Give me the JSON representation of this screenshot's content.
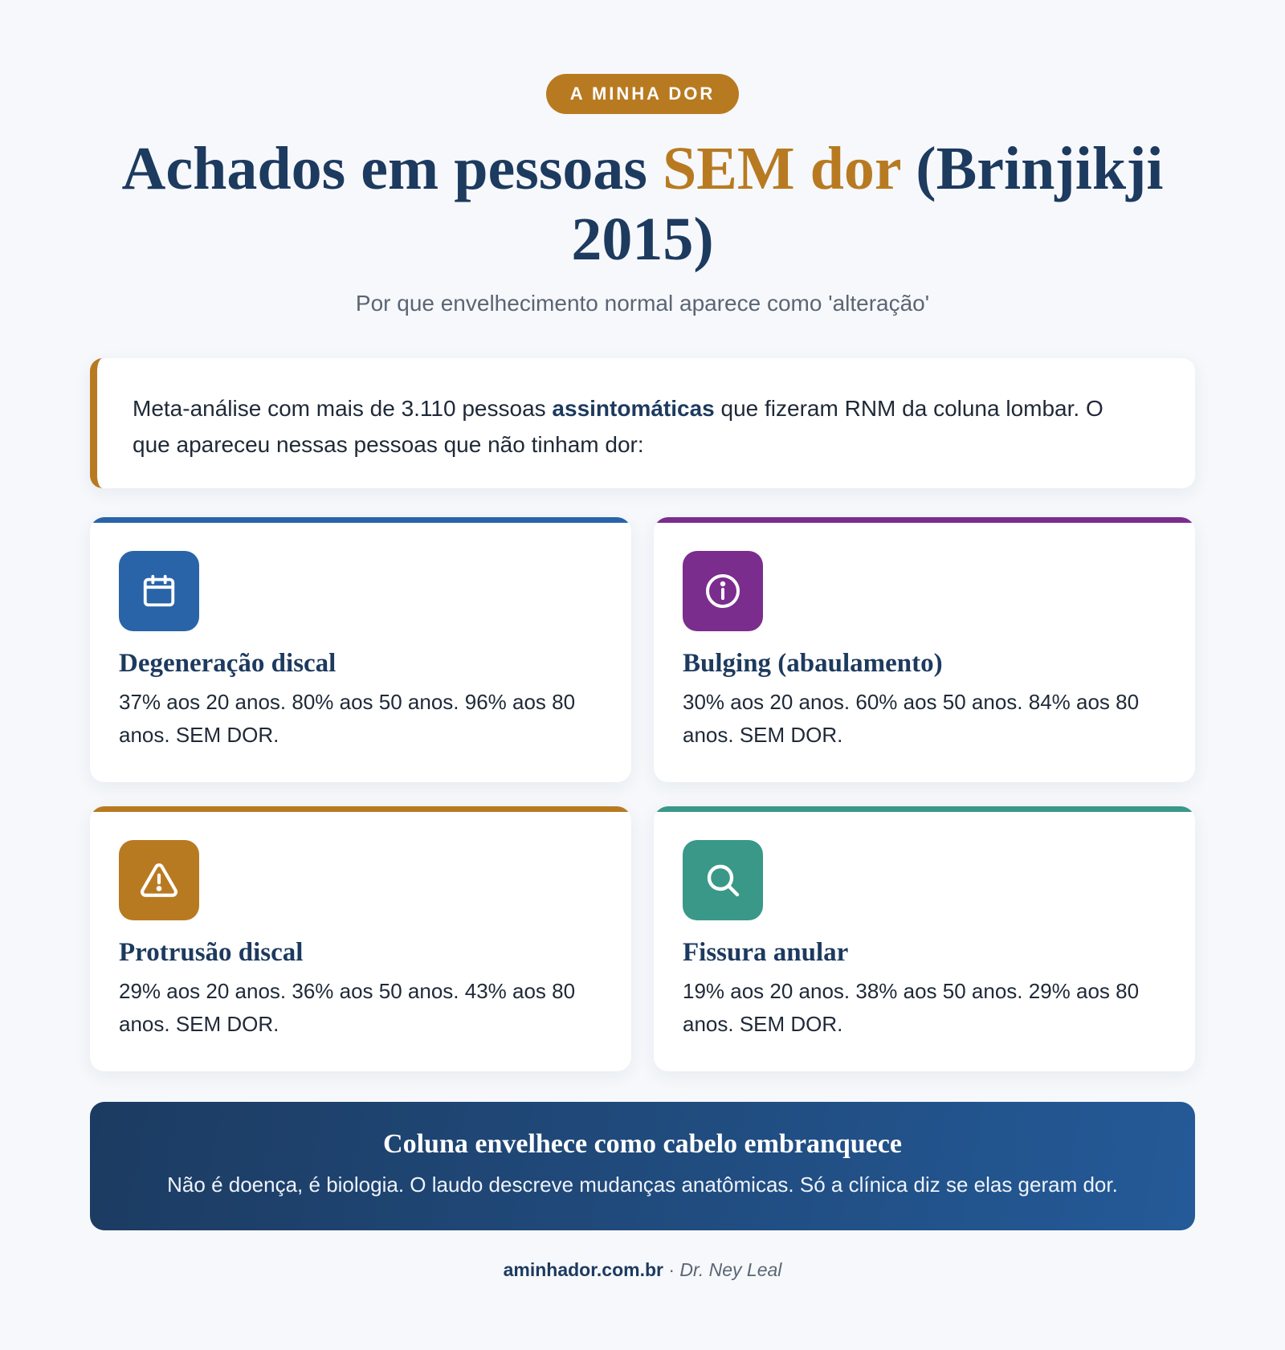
{
  "header": {
    "badge": "A MINHA DOR",
    "title_part1": "Achados em pessoas ",
    "title_accent": "SEM dor",
    "title_part2": " (Brinjikji 2015)",
    "subtitle": "Por que envelhecimento normal aparece como 'alteração'"
  },
  "intro": {
    "text_before": "Meta-análise com mais de 3.110 pessoas ",
    "text_strong": "assintomáticas",
    "text_after": " que fizeram RNM da coluna lombar. O que apareceu nessas pessoas que não tinham dor:"
  },
  "cards": [
    {
      "title": "Degeneração discal",
      "text": "37% aos 20 anos. 80% aos 50 anos. 96% aos 80 anos. SEM DOR.",
      "icon": "calendar-icon",
      "color": "#2a64a8"
    },
    {
      "title": "Bulging (abaulamento)",
      "text": "30% aos 20 anos. 60% aos 50 anos. 84% aos 80 anos. SEM DOR.",
      "icon": "info-icon",
      "color": "#7b2d8e"
    },
    {
      "title": "Protrusão discal",
      "text": "29% aos 20 anos. 36% aos 50 anos. 43% aos 80 anos. SEM DOR.",
      "icon": "warning-icon",
      "color": "#b87a21"
    },
    {
      "title": "Fissura anular",
      "text": "19% aos 20 anos. 38% aos 50 anos. 29% aos 80 anos. SEM DOR.",
      "icon": "search-icon",
      "color": "#3a9889"
    }
  ],
  "banner": {
    "title": "Coluna envelhece como cabelo embranquece",
    "text": "Não é doença, é biologia. O laudo descreve mudanças anatômicas. Só a clínica diz se elas geram dor."
  },
  "footer": {
    "site": "aminhador.com.br",
    "separator": " · ",
    "author": "Dr. Ney Leal"
  }
}
